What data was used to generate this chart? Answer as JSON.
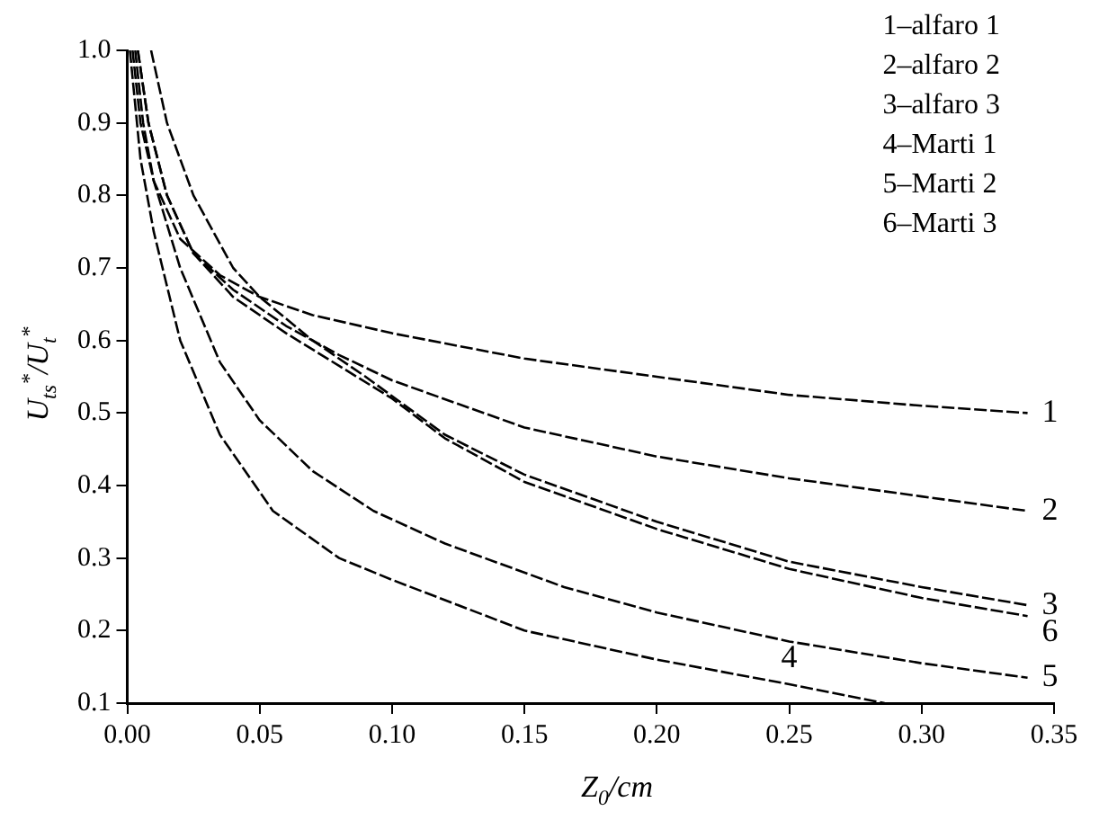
{
  "chart_data": {
    "type": "line",
    "xlabel": "Z$_{0}$/cm",
    "ylabel": "U$_{ts}$$^{*}$/U$_{t}$$^{*}$",
    "xlim": [
      0,
      0.35
    ],
    "ylim": [
      0.1,
      1.0
    ],
    "xticks": [
      {
        "value": 0,
        "label": "0.00"
      },
      0.05,
      {
        "value": 0.1,
        "label": "0.10"
      },
      0.15,
      {
        "value": 0.2,
        "label": "0.20"
      },
      0.25,
      {
        "value": 0.3,
        "label": "0.30"
      },
      0.35
    ],
    "yticks": [
      0.1,
      0.2,
      0.3,
      0.4,
      0.5,
      0.6,
      0.7,
      0.8,
      0.9,
      {
        "value": 1,
        "label": "1.0"
      }
    ],
    "grid": false,
    "line_style": "dashed",
    "marker": "none",
    "series": [
      {
        "name": "1",
        "color": "#000000",
        "x": [
          0.003,
          0.006,
          0.01,
          0.02,
          0.035,
          0.05,
          0.07,
          0.1,
          0.15,
          0.2,
          0.25,
          0.3,
          0.34
        ],
        "values": [
          1.0,
          0.9,
          0.82,
          0.74,
          0.69,
          0.66,
          0.635,
          0.61,
          0.575,
          0.55,
          0.525,
          0.51,
          0.5
        ]
      },
      {
        "name": "2",
        "color": "#000000",
        "x": [
          0.004,
          0.008,
          0.015,
          0.025,
          0.04,
          0.06,
          0.08,
          0.1,
          0.15,
          0.2,
          0.25,
          0.3,
          0.34
        ],
        "values": [
          1.0,
          0.9,
          0.8,
          0.72,
          0.67,
          0.62,
          0.58,
          0.545,
          0.48,
          0.44,
          0.41,
          0.385,
          0.365
        ]
      },
      {
        "name": "3",
        "color": "#000000",
        "x": [
          0.009,
          0.015,
          0.025,
          0.04,
          0.05,
          0.07,
          0.09,
          0.12,
          0.15,
          0.2,
          0.25,
          0.3,
          0.34
        ],
        "values": [
          1.0,
          0.9,
          0.8,
          0.7,
          0.66,
          0.6,
          0.55,
          0.47,
          0.415,
          0.35,
          0.295,
          0.26,
          0.235
        ]
      },
      {
        "name": "4",
        "color": "#000000",
        "x": [
          0.001,
          0.005,
          0.01,
          0.02,
          0.035,
          0.055,
          0.08,
          0.1,
          0.15,
          0.2,
          0.25,
          0.286
        ],
        "values": [
          1.0,
          0.85,
          0.75,
          0.6,
          0.47,
          0.365,
          0.3,
          0.27,
          0.2,
          0.16,
          0.126,
          0.1
        ]
      },
      {
        "name": "5",
        "color": "#000000",
        "x": [
          0.002,
          0.005,
          0.01,
          0.02,
          0.035,
          0.05,
          0.07,
          0.093,
          0.12,
          0.165,
          0.2,
          0.25,
          0.3,
          0.34
        ],
        "values": [
          1.0,
          0.9,
          0.82,
          0.7,
          0.57,
          0.49,
          0.42,
          0.365,
          0.32,
          0.26,
          0.225,
          0.185,
          0.155,
          0.135
        ]
      },
      {
        "name": "6",
        "color": "#000000",
        "x": [
          0.004,
          0.008,
          0.015,
          0.025,
          0.04,
          0.06,
          0.08,
          0.1,
          0.12,
          0.15,
          0.2,
          0.25,
          0.3,
          0.34
        ],
        "values": [
          1.0,
          0.9,
          0.8,
          0.72,
          0.66,
          0.61,
          0.565,
          0.52,
          0.465,
          0.405,
          0.34,
          0.285,
          0.245,
          0.22
        ]
      }
    ],
    "annotations": [
      "1–alfaro 1",
      "2–alfaro 2",
      "3–alfaro 3",
      "4–Marti 1",
      "5–Marti 2",
      "6–Marti 3"
    ]
  }
}
